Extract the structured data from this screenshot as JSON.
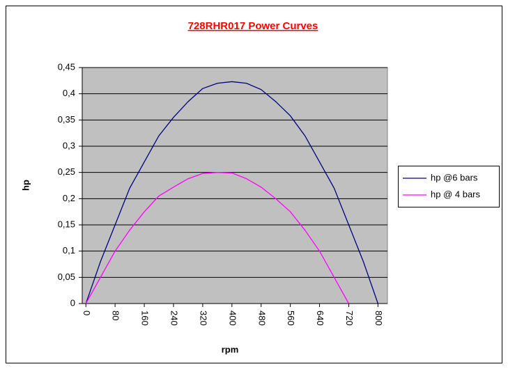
{
  "chart_data": {
    "type": "line",
    "title": "728RHR017 Power Curves",
    "x_label": "rpm",
    "y_label": "hp",
    "series": [
      {
        "name": "hp @6 bars",
        "color": "#000080",
        "x": [
          0,
          40,
          80,
          120,
          160,
          200,
          240,
          280,
          320,
          360,
          400,
          440,
          480,
          520,
          560,
          600,
          640,
          680,
          720,
          760,
          800
        ],
        "values": [
          0,
          0.08,
          0.15,
          0.22,
          0.27,
          0.32,
          0.355,
          0.385,
          0.41,
          0.42,
          0.423,
          0.42,
          0.408,
          0.385,
          0.358,
          0.32,
          0.27,
          0.22,
          0.15,
          0.08,
          0
        ]
      },
      {
        "name": "hp @ 4 bars",
        "color": "#ff00ff",
        "x": [
          0,
          40,
          80,
          120,
          160,
          200,
          240,
          280,
          320,
          360,
          400,
          440,
          480,
          520,
          560,
          600,
          640,
          680,
          720
        ],
        "values": [
          0,
          0.05,
          0.1,
          0.14,
          0.175,
          0.205,
          0.222,
          0.238,
          0.248,
          0.25,
          0.249,
          0.238,
          0.222,
          0.2,
          0.175,
          0.14,
          0.1,
          0.05,
          0
        ]
      }
    ],
    "xlim": [
      -10,
      826
    ],
    "xticks": [
      0,
      80,
      160,
      240,
      320,
      400,
      480,
      560,
      640,
      720,
      800
    ],
    "ylim": [
      0,
      0.45
    ],
    "yticks": [
      0,
      {
        "value": 0.05,
        "label": "0,05"
      },
      {
        "value": 0.1,
        "label": "0,1"
      },
      {
        "value": 0.15,
        "label": "0,15"
      },
      {
        "value": 0.2,
        "label": "0,2"
      },
      {
        "value": 0.25,
        "label": "0,25"
      },
      {
        "value": 0.3,
        "label": "0,3"
      },
      {
        "value": 0.35,
        "label": "0,35"
      },
      {
        "value": 0.4,
        "label": "0,4"
      },
      {
        "value": 0.45,
        "label": "0,45"
      }
    ],
    "grid": true,
    "legend": "right"
  }
}
